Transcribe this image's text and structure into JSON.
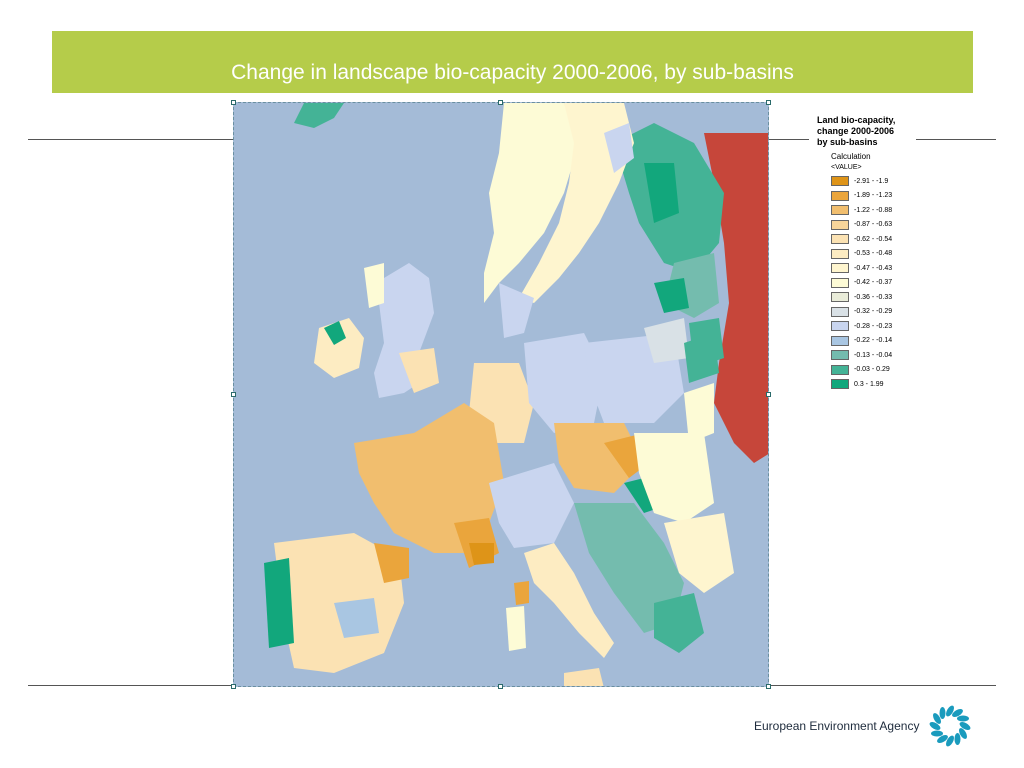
{
  "slide": {
    "title": "Change in landscape bio-capacity 2000-2006, by sub-basins"
  },
  "legend": {
    "title_lines": [
      "Land bio-capacity,",
      "change 2000-2006",
      "by sub-basins"
    ],
    "calculation_label": "Calculation",
    "value_label": "<VALUE>",
    "items": [
      {
        "label": "-2.91 - -1.9",
        "color": "#de9418"
      },
      {
        "label": "-1.89 - -1.23",
        "color": "#eaa53c"
      },
      {
        "label": "-1.22 - -0.88",
        "color": "#f1be6e"
      },
      {
        "label": "-0.87 - -0.63",
        "color": "#f7d59a"
      },
      {
        "label": "-0.62 - -0.54",
        "color": "#fbe2b3"
      },
      {
        "label": "-0.53 - -0.48",
        "color": "#fdecc2"
      },
      {
        "label": "-0.47 - -0.43",
        "color": "#fef5cf"
      },
      {
        "label": "-0.42 - -0.37",
        "color": "#fdfbd6"
      },
      {
        "label": "-0.36 - -0.33",
        "color": "#e9ecd9"
      },
      {
        "label": "-0.32 - -0.29",
        "color": "#d9e1e6"
      },
      {
        "label": "-0.28 - -0.23",
        "color": "#c9d5ef"
      },
      {
        "label": "-0.22 - -0.14",
        "color": "#a9c6e2"
      },
      {
        "label": "-0.13 - -0.04",
        "color": "#74bcae"
      },
      {
        "label": "-0.03 - 0.29",
        "color": "#44b396"
      },
      {
        "label": "0.3 - 1.99",
        "color": "#12a77c"
      }
    ],
    "no_data_color": "#c6463a"
  },
  "map": {
    "sea_color": "#a4bbd7"
  },
  "footer": {
    "agency_name": "European Environment Agency",
    "logo_icon": "eea-sun-icon",
    "logo_color": "#1a9bbd"
  }
}
